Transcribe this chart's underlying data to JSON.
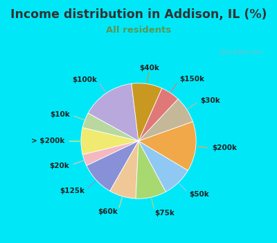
{
  "title": "Income distribution in Addison, IL (%)",
  "subtitle": "All residents",
  "title_color": "#333333",
  "subtitle_color": "#559955",
  "background_outer": "#00e8f8",
  "background_inner_top": "#e0f5f0",
  "background_inner_bottom": "#d0eee0",
  "watermark": "City-Data.com",
  "labels": [
    "$100k",
    "$10k",
    "> $200k",
    "$20k",
    "$125k",
    "$60k",
    "$75k",
    "$50k",
    "$200k",
    "$30k",
    "$150k",
    "$40k"
  ],
  "values": [
    14,
    4,
    7,
    3,
    9,
    7,
    8,
    8,
    13,
    7,
    5,
    8
  ],
  "colors": [
    "#b8a8dc",
    "#b8d8a0",
    "#f0ea70",
    "#f4b8c0",
    "#8890d8",
    "#f0c898",
    "#a8d870",
    "#90c8f4",
    "#f0a848",
    "#c4b898",
    "#e07878",
    "#c89820"
  ],
  "startangle": 97,
  "label_fontsize": 7.5,
  "title_fontsize": 12.5,
  "subtitle_fontsize": 9.5
}
